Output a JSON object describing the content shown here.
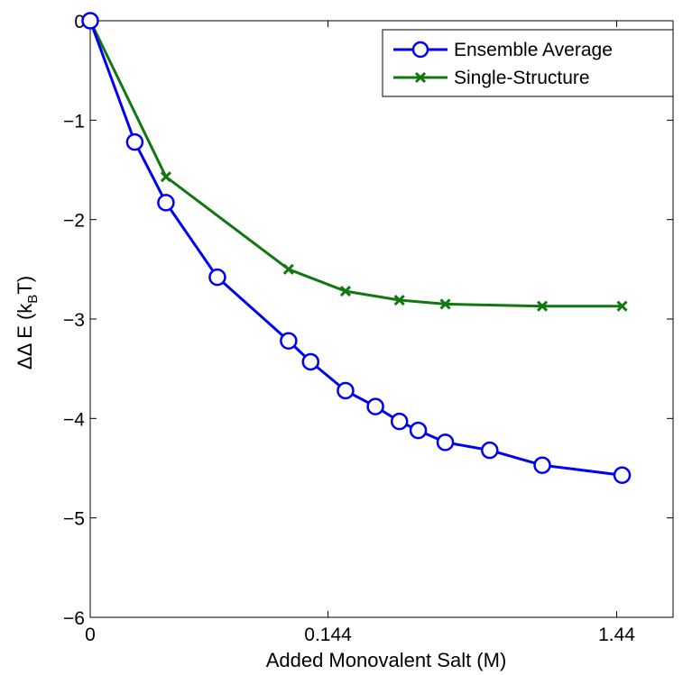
{
  "chart_data": {
    "type": "line",
    "xlabel": "Added Monovalent Salt (M)",
    "ylabel": {
      "prefix": "ΔΔ E (k",
      "sub": "B",
      "suffix": "T)"
    },
    "x_scale": "log",
    "xlim": [
      0,
      2.2
    ],
    "ylim": [
      -6,
      0
    ],
    "x_ticks": [
      {
        "value": 0,
        "label": "0"
      },
      {
        "value": 0.144,
        "label": "0.144"
      },
      {
        "value": 1.44,
        "label": "1.44"
      }
    ],
    "y_ticks": [
      {
        "value": 0,
        "label": "0"
      },
      {
        "value": -1,
        "label": "−1"
      },
      {
        "value": -2,
        "label": "−2"
      },
      {
        "value": -3,
        "label": "−3"
      },
      {
        "value": -4,
        "label": "−4"
      },
      {
        "value": -5,
        "label": "−5"
      },
      {
        "value": -6,
        "label": "−6"
      }
    ],
    "grid": false,
    "legend_position": "top-right",
    "series": [
      {
        "name": "Ensemble Average",
        "color": "#0000ee",
        "marker": "circle",
        "x": [
          0,
          0.0117,
          0.0225,
          0.0468,
          0.1,
          0.123,
          0.168,
          0.217,
          0.265,
          0.309,
          0.384,
          0.545,
          0.818,
          1.5
        ],
        "y": [
          0,
          -1.22,
          -1.83,
          -2.58,
          -3.22,
          -3.43,
          -3.72,
          -3.88,
          -4.03,
          -4.12,
          -4.24,
          -4.32,
          -4.47,
          -4.57
        ]
      },
      {
        "name": "Single-Structure",
        "color": "#117711",
        "marker": "x",
        "x": [
          0,
          0.0225,
          0.1,
          0.168,
          0.265,
          0.384,
          0.818,
          1.5
        ],
        "y": [
          0,
          -1.57,
          -2.5,
          -2.72,
          -2.81,
          -2.85,
          -2.87,
          -2.87
        ]
      }
    ]
  }
}
